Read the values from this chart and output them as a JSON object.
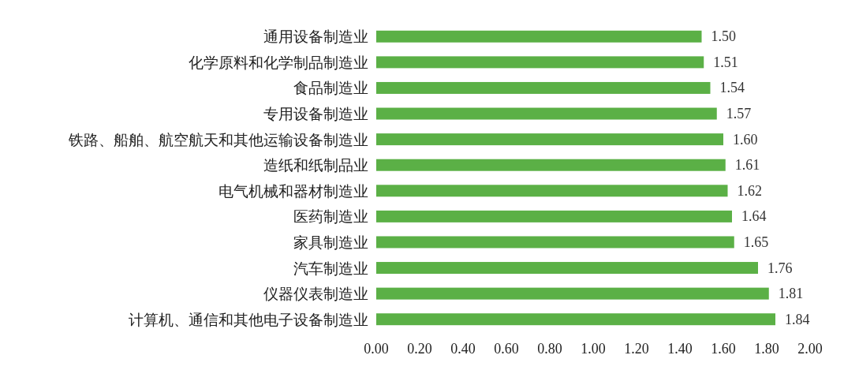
{
  "chart_data": {
    "type": "bar",
    "orientation": "horizontal",
    "categories": [
      "通用设备制造业",
      "化学原料和化学制品制造业",
      "食品制造业",
      "专用设备制造业",
      "铁路、船舶、航空航天和其他运输设备制造业",
      "造纸和纸制品业",
      "电气机械和器材制造业",
      "医药制造业",
      "家具制造业",
      "汽车制造业",
      "仪器仪表制造业",
      "计算机、通信和其他电子设备制造业"
    ],
    "values": [
      1.5,
      1.51,
      1.54,
      1.57,
      1.6,
      1.61,
      1.62,
      1.64,
      1.65,
      1.76,
      1.81,
      1.84
    ],
    "value_labels": [
      "1.50",
      "1.51",
      "1.54",
      "1.57",
      "1.60",
      "1.61",
      "1.62",
      "1.64",
      "1.65",
      "1.76",
      "1.81",
      "1.84"
    ],
    "color": "#5bb046",
    "xlim": [
      0,
      2
    ],
    "xticks": [
      {
        "value": 0,
        "label": "0.00"
      },
      {
        "value": 0.2,
        "label": "0.20"
      },
      {
        "value": 0.4,
        "label": "0.40"
      },
      {
        "value": 0.6,
        "label": "0.60"
      },
      {
        "value": 0.8,
        "label": "0.80"
      },
      {
        "value": 1,
        "label": "1.00"
      },
      {
        "value": 1.2,
        "label": "1.20"
      },
      {
        "value": 1.4,
        "label": "1.40"
      },
      {
        "value": 1.6,
        "label": "1.60"
      },
      {
        "value": 1.8,
        "label": "1.80"
      },
      {
        "value": 2,
        "label": "2.00"
      }
    ],
    "grid": false
  }
}
